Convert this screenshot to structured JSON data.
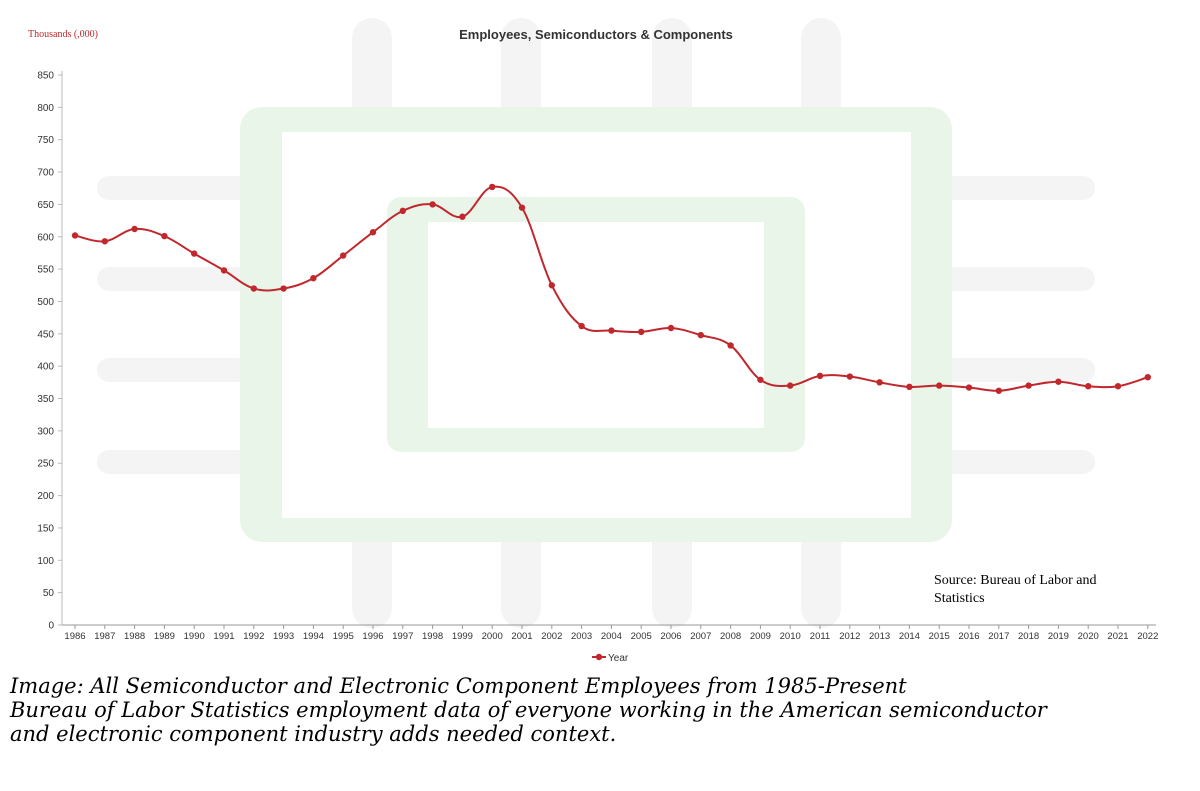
{
  "chart_data": {
    "type": "line",
    "title": "Employees, Semiconductors & Components",
    "ylabel": "Thousands (,000)",
    "xlabel": "",
    "ylim": [
      0,
      850
    ],
    "yticks": [
      0,
      50,
      100,
      150,
      200,
      250,
      300,
      350,
      400,
      450,
      500,
      550,
      600,
      650,
      700,
      750,
      800,
      850
    ],
    "grid": false,
    "legend_position": "bottom-center",
    "categories": [
      "1986",
      "1987",
      "1988",
      "1989",
      "1990",
      "1991",
      "1992",
      "1993",
      "1994",
      "1995",
      "1996",
      "1997",
      "1998",
      "1999",
      "2000",
      "2001",
      "2002",
      "2003",
      "2004",
      "2005",
      "2006",
      "2007",
      "2008",
      "2009",
      "2010",
      "2011",
      "2012",
      "2013",
      "2014",
      "2015",
      "2016",
      "2017",
      "2018",
      "2019",
      "2020",
      "2021",
      "2022"
    ],
    "series": [
      {
        "name": "Year",
        "color": "#c0282d",
        "values": [
          602,
          593,
          612,
          601,
          574,
          548,
          520,
          520,
          536,
          571,
          607,
          640,
          650,
          631,
          677,
          645,
          525,
          462,
          455,
          453,
          459,
          448,
          432,
          379,
          370,
          385,
          384,
          375,
          368,
          370,
          367,
          362,
          370,
          376,
          369,
          369,
          383
        ]
      }
    ],
    "annotation": "Source: Bureau of Labor and Statistics"
  },
  "caption": {
    "line1": "Image: All Semiconductor and Electronic Component Employees from 1985-Present",
    "line2": "Bureau of Labor Statistics employment data of everyone working in the American semiconductor",
    "line3": "and electronic component industry adds needed context."
  },
  "colors": {
    "line": "#c0282d",
    "chip_green": "#e8f4e8",
    "chip_pins": "#f4f4f4",
    "axis_text": "#333333"
  }
}
